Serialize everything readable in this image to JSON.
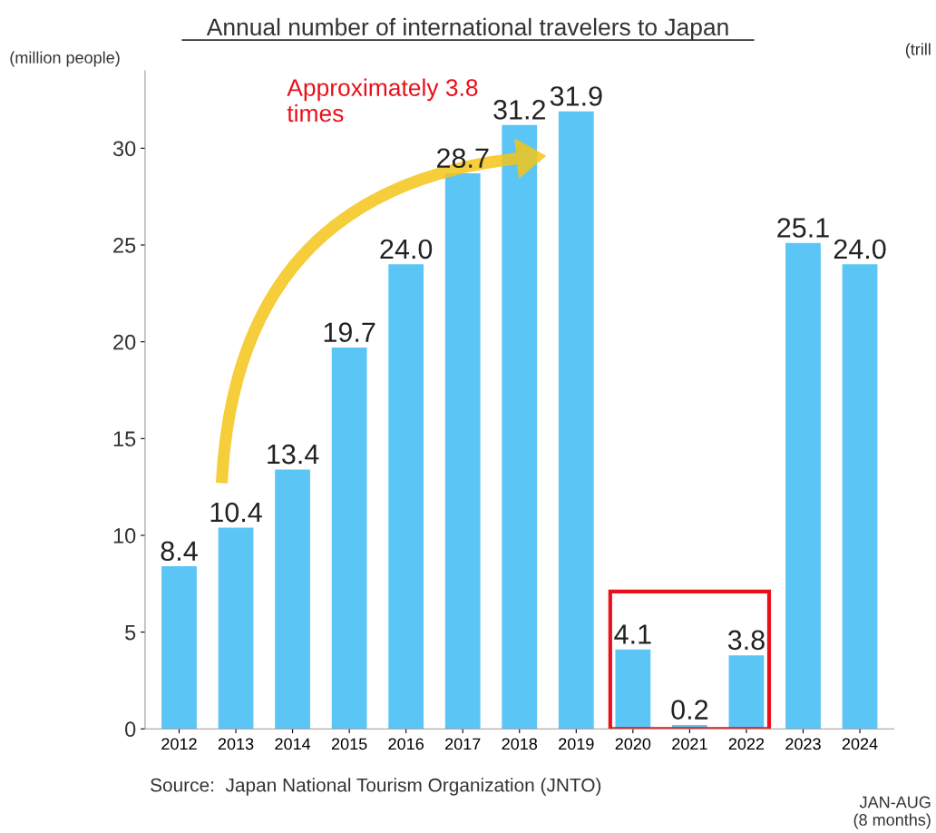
{
  "chart_data": {
    "type": "bar",
    "title": "Annual number of international travelers to Japan",
    "ylabel": "(million people)",
    "categories": [
      "2012",
      "2013",
      "2014",
      "2015",
      "2016",
      "2017",
      "2018",
      "2019",
      "2020",
      "2021",
      "2022",
      "2023",
      "2024"
    ],
    "values": [
      8.4,
      10.4,
      13.4,
      19.7,
      24.0,
      28.7,
      31.2,
      31.9,
      4.1,
      0.2,
      3.8,
      25.1,
      24.0
    ],
    "value_labels": [
      "8.4",
      "10.4",
      "13.4",
      "19.7",
      "24.0",
      "28.7",
      "31.2",
      "31.9",
      "4.1",
      "0.2",
      "3.8",
      "25.1",
      "24.0"
    ],
    "color": "#5bc5f5",
    "ylim": [
      0,
      34
    ],
    "yticks": [
      0,
      5,
      10,
      15,
      20,
      25,
      30
    ],
    "grid": false,
    "legend": false,
    "annotations": [
      "Approximately 3.8\ntimes",
      "Source:  Japan National Tourism Organization (JNTO)",
      "JAN-AUG\n(8 months)",
      "(trill"
    ]
  }
}
